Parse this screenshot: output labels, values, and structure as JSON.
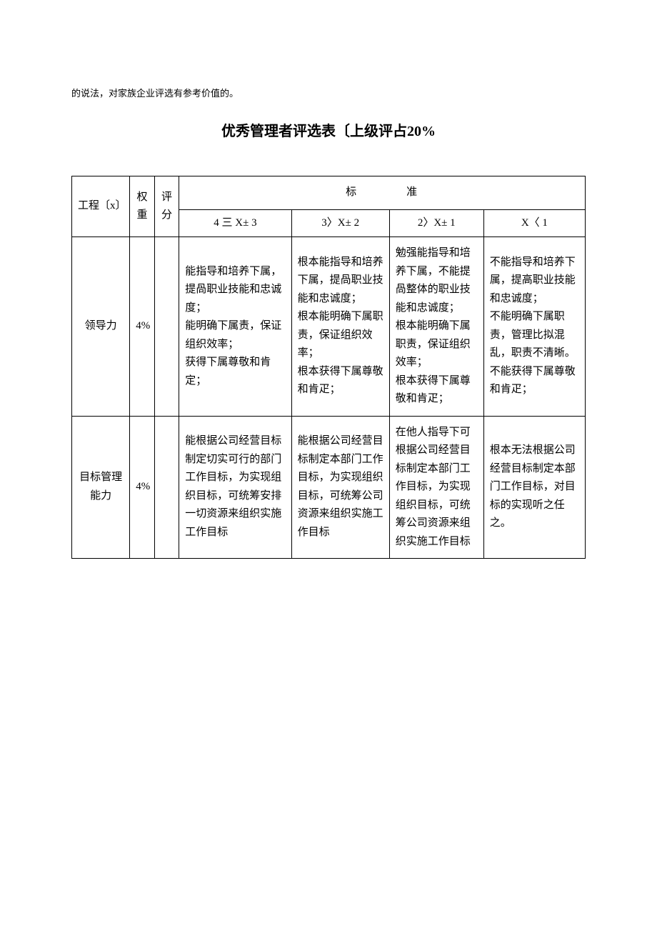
{
  "intro": "的说法，对家族企业评选有参考价值的。",
  "title": "优秀管理者评选表〔上级评占20%",
  "headers": {
    "project": "工程〔x〕",
    "weight": "权重",
    "score": "评分",
    "standard": "标　　　　准",
    "s1": "4 三 X± 3",
    "s2": "3〉X± 2",
    "s3": "2〉X± 1",
    "s4": "X〈 1"
  },
  "rows": [
    {
      "project": "领导力",
      "weight": "4%",
      "score": "",
      "c1": "能指导和培养下属，提咼职业技能和忠诚度；\n能明确下属责，保证组织效率；\n获得下属尊敬和肯定；",
      "c2": "根本能指导和培养下属，提咼职业技能和忠诚度；\n根本能明确下属职责，保证组织效率；\n根本获得下属尊敬和肯疋；",
      "c3": "勉强能指导和培养下属，不能提咼整体的职业技能和忠诚度；\n根本能明确下属职责，保证组织效率；\n根本获得下属尊敬和肯疋；",
      "c4": "不能指导和培养下属，提高职业技能和忠诚度；\n不能明确下属职责，管理比拟混乱，职责不清晰。\n不能获得下属尊敬和肯疋；"
    },
    {
      "project": "目标管理能力",
      "weight": "4%",
      "score": "",
      "c1": "能根据公司经营目标制定切实可行的部门工作目标，为实现组织目标，可统筹安排一切资源来组织实施工作目标",
      "c2": "能根据公司经营目标制定本部门工作目标，为实现组织目标，可统筹公司资源来组织实施工作目标",
      "c3": "在他人指导下可根据公司经营目标制定本部门工作目标，为实现组织目标，可统筹公司资源来组织实施工作目标",
      "c4": "根本无法根据公司经营目标制定本部门工作目标，对目标的实现听之任之。"
    }
  ]
}
